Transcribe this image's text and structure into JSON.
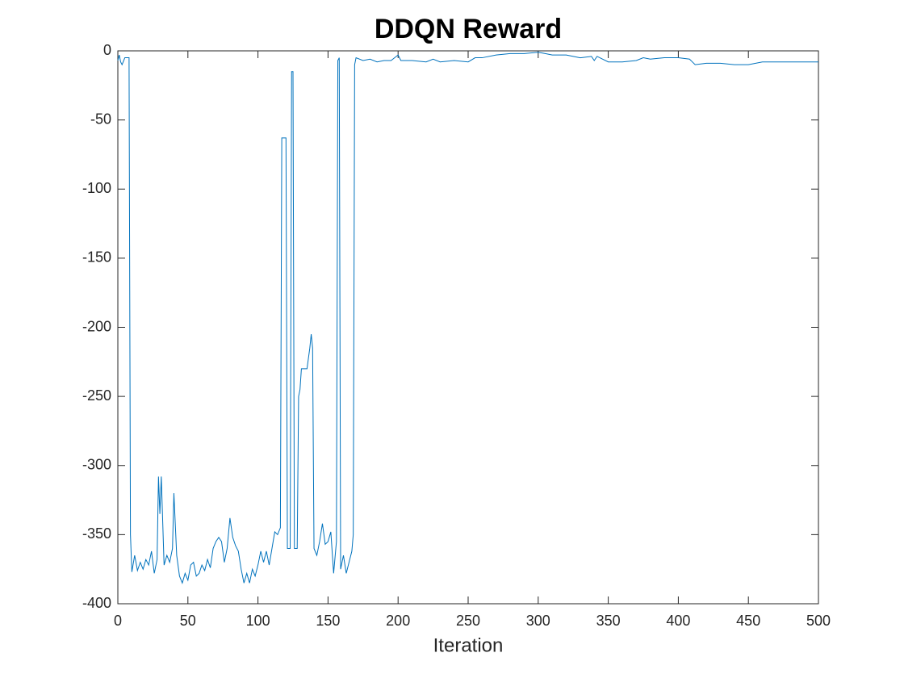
{
  "chart_data": {
    "type": "line",
    "title": "DDQN Reward",
    "x_label": "Iteration",
    "x": [
      0,
      1,
      2,
      3,
      5,
      8,
      9,
      10,
      12,
      14,
      16,
      18,
      20,
      22,
      24,
      26,
      28,
      29,
      30,
      31,
      33,
      35,
      37,
      39,
      40,
      42,
      44,
      46,
      48,
      50,
      52,
      54,
      56,
      58,
      60,
      62,
      64,
      66,
      68,
      70,
      72,
      74,
      76,
      78,
      80,
      82,
      84,
      86,
      88,
      90,
      92,
      94,
      96,
      98,
      100,
      102,
      104,
      106,
      108,
      110,
      112,
      114,
      116,
      117,
      120,
      121,
      123,
      124,
      125,
      126,
      128,
      129,
      130,
      131,
      135,
      137,
      138,
      139,
      140,
      142,
      144,
      146,
      148,
      150,
      152,
      154,
      156,
      157,
      158,
      159,
      161,
      163,
      165,
      167,
      168,
      169,
      170,
      175,
      180,
      185,
      190,
      195,
      200,
      202,
      210,
      220,
      225,
      230,
      240,
      250,
      255,
      260,
      270,
      280,
      290,
      300,
      305,
      310,
      320,
      330,
      338,
      340,
      342,
      350,
      360,
      370,
      375,
      380,
      390,
      400,
      408,
      410,
      412,
      420,
      430,
      440,
      450,
      460,
      470,
      480,
      490,
      500
    ],
    "series": [
      {
        "color": "#0072bd",
        "values": [
          -7,
          -3,
          -8,
          -10,
          -5,
          -5,
          -350,
          -377,
          -365,
          -376,
          -370,
          -375,
          -368,
          -372,
          -362,
          -378,
          -368,
          -308,
          -335,
          -308,
          -372,
          -365,
          -370,
          -360,
          -320,
          -365,
          -380,
          -385,
          -378,
          -383,
          -372,
          -370,
          -380,
          -378,
          -372,
          -376,
          -368,
          -374,
          -360,
          -355,
          -352,
          -355,
          -370,
          -360,
          -338,
          -352,
          -358,
          -362,
          -375,
          -385,
          -378,
          -385,
          -375,
          -380,
          -372,
          -362,
          -370,
          -362,
          -372,
          -360,
          -348,
          -350,
          -345,
          -63,
          -63,
          -360,
          -360,
          -15,
          -15,
          -360,
          -360,
          -250,
          -245,
          -230,
          -230,
          -215,
          -205,
          -215,
          -360,
          -365,
          -355,
          -342,
          -357,
          -355,
          -348,
          -378,
          -355,
          -7,
          -5,
          -375,
          -365,
          -378,
          -370,
          -362,
          -350,
          -10,
          -5,
          -7,
          -6,
          -8,
          -7,
          -7,
          -3,
          -7,
          -7,
          -8,
          -6,
          -8,
          -7,
          -8,
          -5,
          -5,
          -3,
          -2,
          -2,
          -1,
          -2,
          -3,
          -3,
          -5,
          -4,
          -7,
          -4,
          -8,
          -8,
          -7,
          -5,
          -6,
          -5,
          -5,
          -6,
          -8,
          -10,
          -9,
          -9,
          -10,
          -10,
          -8,
          -8,
          -8,
          -8,
          -8
        ]
      }
    ],
    "xlim": [
      0,
      500
    ],
    "ylim": [
      -400,
      0
    ],
    "xticks": [
      0,
      50,
      100,
      150,
      200,
      250,
      300,
      350,
      400,
      450,
      500
    ],
    "yticks": [
      -400,
      -350,
      -300,
      -250,
      -200,
      -150,
      -100,
      -50,
      0
    ]
  }
}
